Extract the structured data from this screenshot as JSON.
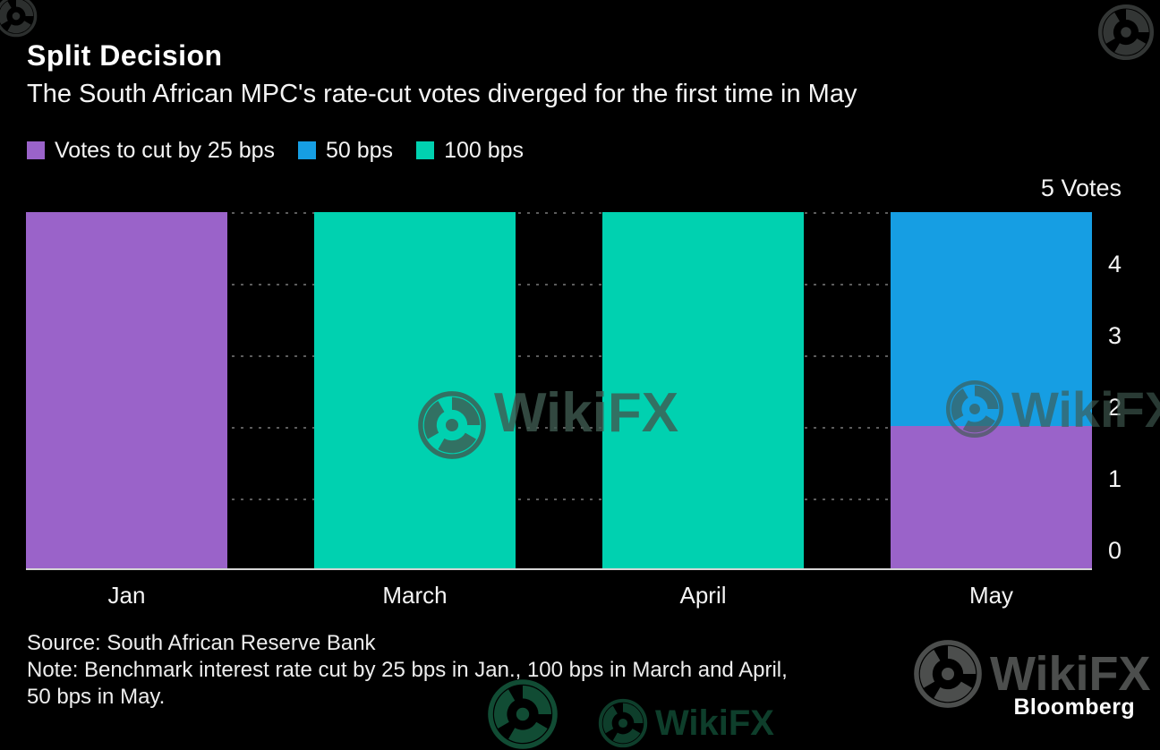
{
  "title": "Split Decision",
  "subtitle": "The South African MPC's rate-cut votes diverged for the first time in May",
  "chart_data": {
    "type": "bar",
    "stacked": true,
    "categories": [
      "Jan",
      "March",
      "April",
      "May"
    ],
    "series": [
      {
        "name": "Votes to cut by 25 bps",
        "color": "#9a63c9",
        "values": [
          5,
          0,
          0,
          2
        ]
      },
      {
        "name": "50 bps",
        "color": "#169ee3",
        "values": [
          0,
          0,
          0,
          3
        ]
      },
      {
        "name": "100 bps",
        "color": "#00d1b0",
        "values": [
          0,
          5,
          5,
          0
        ]
      }
    ],
    "title": "Split Decision",
    "subtitle": "The South African MPC's rate-cut votes diverged for the first time in May",
    "xlabel": "",
    "ylabel": "Votes",
    "ylim": [
      0,
      5
    ],
    "yticks": [
      0,
      1,
      2,
      3,
      4
    ],
    "ytick_top_label": "5 Votes",
    "legend_position": "top-left",
    "grid": "horizontal-dotted"
  },
  "footer": {
    "source": "Source: South African Reserve Bank",
    "note_line1": "Note: Benchmark interest rate cut by 25 bps in Jan., 100 bps in March and April,",
    "note_line2": "50 bps in May."
  },
  "branding": "Bloomberg",
  "watermark": {
    "text": "WikiFX"
  }
}
